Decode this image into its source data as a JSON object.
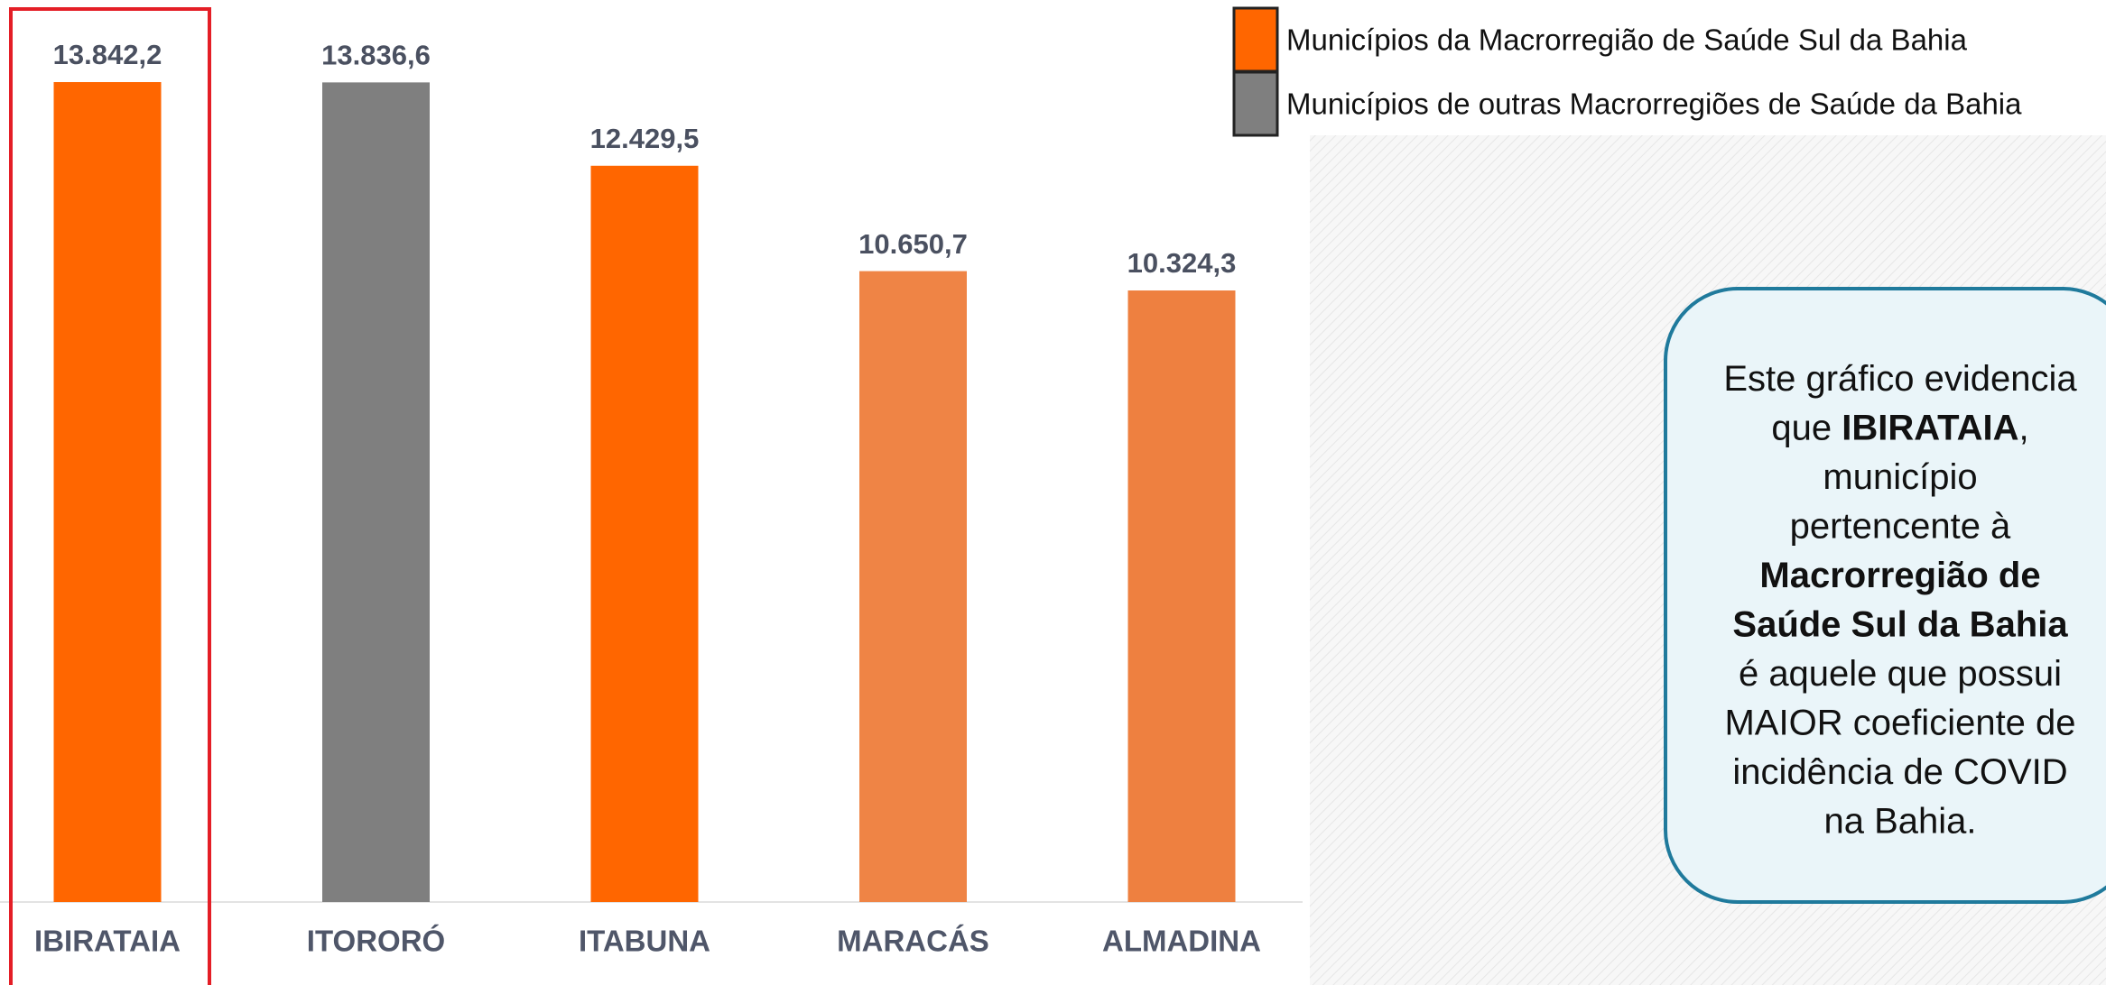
{
  "chart_data": {
    "type": "bar",
    "categories": [
      "IBIRATAIA",
      "ITORORÓ",
      "ITABUNA",
      "MARACÁS",
      "ALMADINA"
    ],
    "values": [
      13842.2,
      13836.6,
      12429.5,
      10650.7,
      10324.3
    ],
    "value_labels": [
      "13.842,2",
      "13.836,6",
      "12.429,5",
      "10.650,7",
      "10.324,3"
    ],
    "colors": [
      "#ff6600",
      "#7f7f7f",
      "#ff6600",
      "#ef8445",
      "#ee8040"
    ],
    "legend": [
      {
        "name": "Municípios da Macrorregião de Saúde Sul da Bahia",
        "color": "#ff6600"
      },
      {
        "name": "Municípios de outras Macrorregiões de Saúde da Bahia",
        "color": "#7f7f7f"
      }
    ],
    "annotation": [
      [
        {
          "text": "Este gráfico evidencia"
        }
      ],
      [
        {
          "text": "que "
        },
        {
          "text": "IBIRATAIA",
          "bold": true
        },
        {
          "text": ","
        }
      ],
      [
        {
          "text": "município"
        }
      ],
      [
        {
          "text": "pertencente à"
        }
      ],
      [
        {
          "text": "Macrorregião de",
          "bold": true
        }
      ],
      [
        {
          "text": "Saúde Sul da Bahia",
          "bold": true
        }
      ],
      [
        {
          "text": "é aquele que possui"
        }
      ],
      [
        {
          "text": "MAIOR coeficiente de"
        }
      ],
      [
        {
          "text": "incidência de COVID"
        }
      ],
      [
        {
          "text": "na Bahia."
        }
      ]
    ]
  }
}
